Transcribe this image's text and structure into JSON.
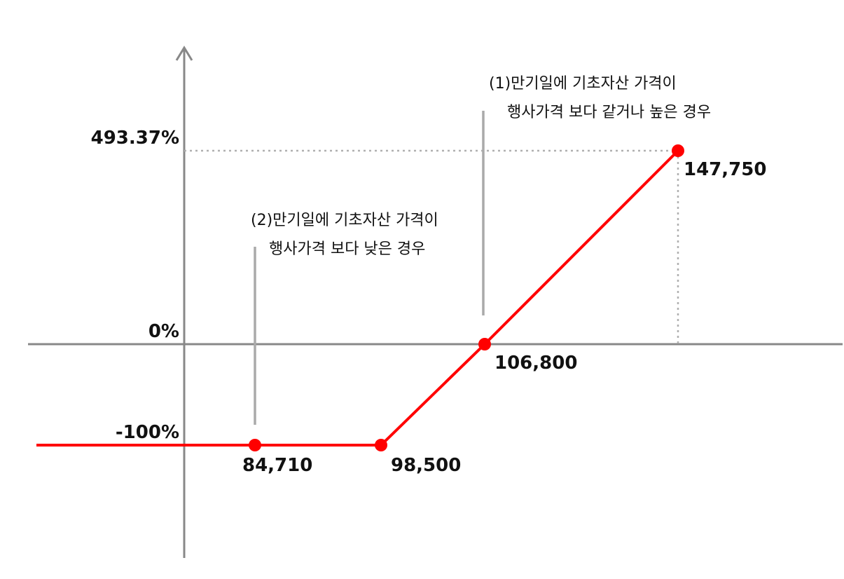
{
  "chart_data": {
    "type": "line",
    "title": "",
    "xlabel": "",
    "ylabel": "",
    "grid": false,
    "legend": "none",
    "y_ticks": [
      {
        "value": 493.37,
        "label": "493.37%"
      },
      {
        "value": 0,
        "label": "0%"
      },
      {
        "value": -100,
        "label": "-100%"
      }
    ],
    "series": [
      {
        "color": "#ff0000",
        "points": [
          {
            "x": 74000,
            "y": -100
          },
          {
            "x": 84710,
            "y": -100
          },
          {
            "x": 98500,
            "y": -100
          },
          {
            "x": 106800,
            "y": 0
          },
          {
            "x": 147750,
            "y": 493.37
          }
        ]
      }
    ],
    "markers": [
      {
        "x": 84710,
        "y": -100,
        "label": "84,710"
      },
      {
        "x": 98500,
        "y": -100,
        "label": "98,500"
      },
      {
        "x": 106800,
        "y": 0,
        "label": "106,800"
      },
      {
        "x": 147750,
        "y": 493.37,
        "label": "147,750"
      }
    ],
    "annotations": [
      {
        "id": "case1",
        "lines": [
          "(1)만기일에 기초자산 가격이",
          "행사가격 보다 같거나 높은 경우"
        ],
        "pointer_x": 106800
      },
      {
        "id": "case2",
        "lines": [
          "(2)만기일에 기초자산 가격이",
          "행사가격 보다 낮은 경우"
        ],
        "pointer_x": 84710
      }
    ]
  },
  "colors": {
    "axis": "#888888",
    "line": "#ff0000",
    "guide": "#b0b0b0",
    "pointer": "#aaaaaa",
    "text": "#111111"
  }
}
